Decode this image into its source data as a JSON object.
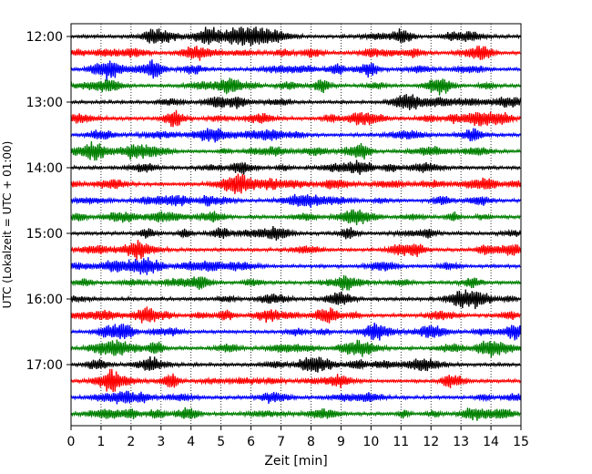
{
  "chart_data": {
    "type": "line",
    "title": "",
    "xlabel": "Zeit  [min]",
    "ylabel": "UTC (Lokalzeit = UTC + 01:00)",
    "xlim": [
      0,
      15
    ],
    "x_ticks": [
      0,
      1,
      2,
      3,
      4,
      5,
      6,
      7,
      8,
      9,
      10,
      11,
      12,
      13,
      14,
      15
    ],
    "y_ticks": [
      "12:00",
      "13:00",
      "14:00",
      "15:00",
      "16:00",
      "17:00"
    ],
    "grid": "vertical dotted lines at each minute",
    "trace_interval_minutes": 15,
    "trace_count": 24,
    "trace_colors": [
      "#000000",
      "#ff0000",
      "#0000ff",
      "#008000"
    ],
    "series": [
      {
        "start": "12:00"
      },
      {
        "start": "12:15"
      },
      {
        "start": "12:30"
      },
      {
        "start": "12:45"
      },
      {
        "start": "13:00"
      },
      {
        "start": "13:15"
      },
      {
        "start": "13:30"
      },
      {
        "start": "13:45"
      },
      {
        "start": "14:00"
      },
      {
        "start": "14:15"
      },
      {
        "start": "14:30"
      },
      {
        "start": "14:45"
      },
      {
        "start": "15:00"
      },
      {
        "start": "15:15"
      },
      {
        "start": "15:30"
      },
      {
        "start": "15:45"
      },
      {
        "start": "16:00"
      },
      {
        "start": "16:15"
      },
      {
        "start": "16:30"
      },
      {
        "start": "16:45"
      },
      {
        "start": "17:00"
      },
      {
        "start": "17:15"
      },
      {
        "start": "17:30"
      },
      {
        "start": "17:45"
      }
    ]
  }
}
